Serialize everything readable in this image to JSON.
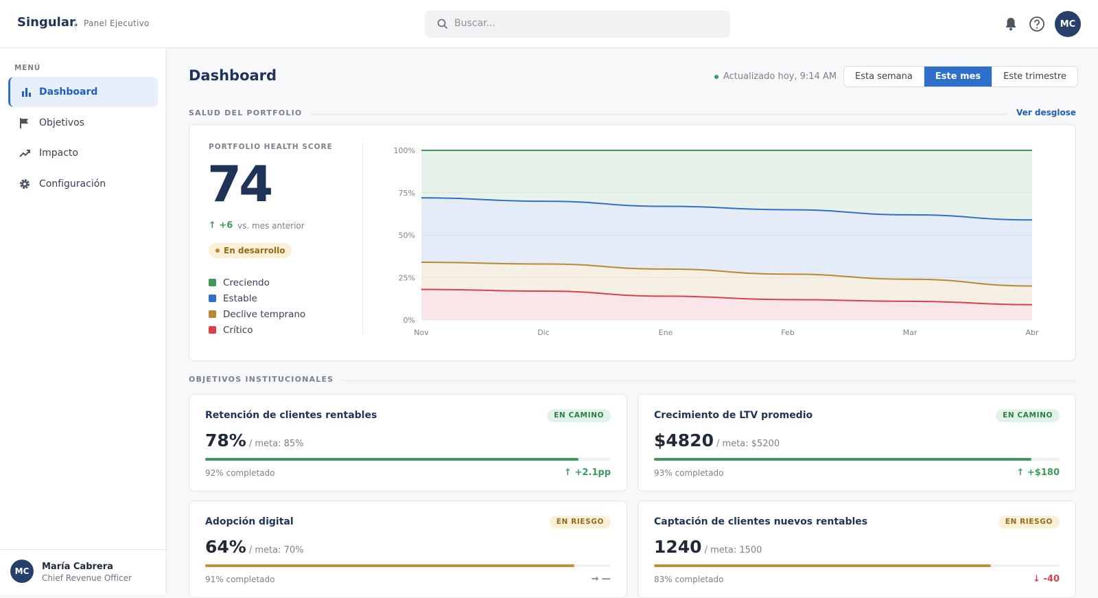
{
  "header": {
    "logo": "Singular.",
    "subtitle": "Panel Ejecutivo",
    "search_placeholder": "Buscar...",
    "avatar": "MC"
  },
  "sidebar": {
    "menu_label": "MENÚ",
    "items": [
      "Dashboard",
      "Objetivos",
      "Impacto",
      "Configuración"
    ],
    "active": 0,
    "user": {
      "initials": "MC",
      "name": "María Cabrera",
      "role": "Chief Revenue Officer"
    }
  },
  "page": {
    "title": "Dashboard",
    "updated": "Actualizado hoy, 9:14 AM",
    "periods": [
      "Esta semana",
      "Este mes",
      "Este trimestre"
    ],
    "active_period": 1
  },
  "portfolio": {
    "section_title": "SALUD DEL PORTFOLIO",
    "link": "Ver desglose",
    "score_label": "PORTFOLIO HEALTH SCORE",
    "score": 74,
    "change": "↑ +6",
    "change_note": "vs. mes anterior",
    "status": "En desarrollo"
  },
  "chart_data": {
    "type": "area",
    "stacked": true,
    "categories": [
      "Nov",
      "Dic",
      "Ene",
      "Feb",
      "Mar",
      "Abr"
    ],
    "series": [
      {
        "name": "Creciendo",
        "color": "#3d9a5b",
        "values": [
          28,
          30,
          33,
          35,
          38,
          41
        ]
      },
      {
        "name": "Estable",
        "color": "#2f6fcc",
        "values": [
          38,
          37,
          37,
          38,
          38,
          39
        ]
      },
      {
        "name": "Declive temprano",
        "color": "#b8892f",
        "values": [
          16,
          16,
          16,
          15,
          13,
          11
        ]
      },
      {
        "name": "Crítico",
        "color": "#d9404f",
        "values": [
          18,
          17,
          14,
          12,
          11,
          9
        ]
      }
    ],
    "ylim": [
      0,
      100
    ],
    "yticks": [
      {
        "value": 0,
        "label": "0%"
      },
      {
        "value": 25,
        "label": "25%"
      },
      {
        "value": 50,
        "label": "50%"
      },
      {
        "value": 75,
        "label": "75%"
      },
      {
        "value": 100,
        "label": "100%"
      }
    ],
    "grid": true
  },
  "objectives": {
    "section_title": "OBJETIVOS INSTITUCIONALES",
    "cards": [
      {
        "title": "Retención de clientes rentables",
        "status": "EN CAMINO",
        "tone": "ok",
        "value": "78%",
        "target": "/ meta: 85%",
        "progress": 92,
        "progress_label": "92% completado",
        "delta": "↑ +2.1pp",
        "trend": "up"
      },
      {
        "title": "Crecimiento de LTV promedio",
        "status": "EN CAMINO",
        "tone": "ok",
        "value": "$4820",
        "target": "/ meta: $5200",
        "progress": 93,
        "progress_label": "93% completado",
        "delta": "↑ +$180",
        "trend": "up"
      },
      {
        "title": "Adopción digital",
        "status": "EN RIESGO",
        "tone": "risk",
        "value": "64%",
        "target": "/ meta: 70%",
        "progress": 91,
        "progress_label": "91% completado",
        "delta": "→ —",
        "trend": "flat"
      },
      {
        "title": "Captación de clientes nuevos rentables",
        "status": "EN RIESGO",
        "tone": "risk",
        "value": "1240",
        "target": "/ meta: 1500",
        "progress": 83,
        "progress_label": "83% completado",
        "delta": "↓ -40",
        "trend": "down"
      }
    ]
  }
}
